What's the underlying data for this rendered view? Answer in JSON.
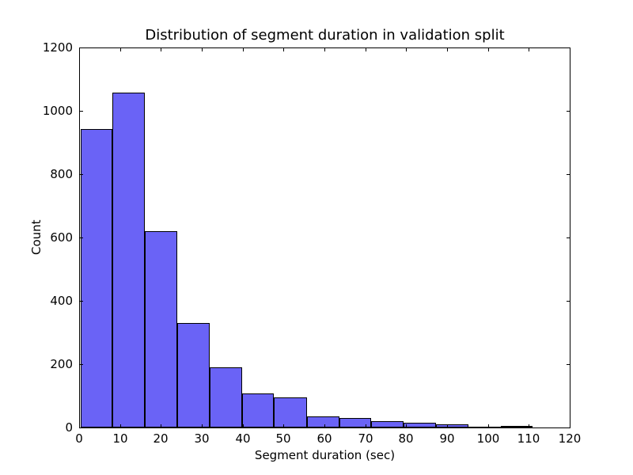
{
  "figure": {
    "background": "#ffffff",
    "axes_edge_color": "#000000",
    "tick_direction": "in"
  },
  "chart_data": {
    "type": "bar",
    "subtype": "histogram",
    "title": "Distribution of segment duration in validation split",
    "xlabel": "Segment duration (sec)",
    "ylabel": "Count",
    "xlim": [
      0,
      120
    ],
    "ylim": [
      0,
      1200
    ],
    "x_ticks": [
      0,
      10,
      20,
      30,
      40,
      50,
      60,
      70,
      80,
      90,
      100,
      110,
      120
    ],
    "y_ticks": [
      0,
      200,
      400,
      600,
      800,
      1000,
      1200
    ],
    "bin_edges": [
      0.3,
      8.2,
      16.1,
      24.0,
      31.9,
      39.8,
      47.7,
      55.7,
      63.6,
      71.5,
      79.4,
      87.3,
      95.2,
      103.1,
      111.0
    ],
    "counts": [
      943,
      1057,
      621,
      330,
      190,
      108,
      94,
      36,
      30,
      19,
      14,
      10,
      1,
      5
    ],
    "bar_fill": "#6a63f6",
    "bar_edge": "#000000",
    "grid": false,
    "legend": null
  }
}
